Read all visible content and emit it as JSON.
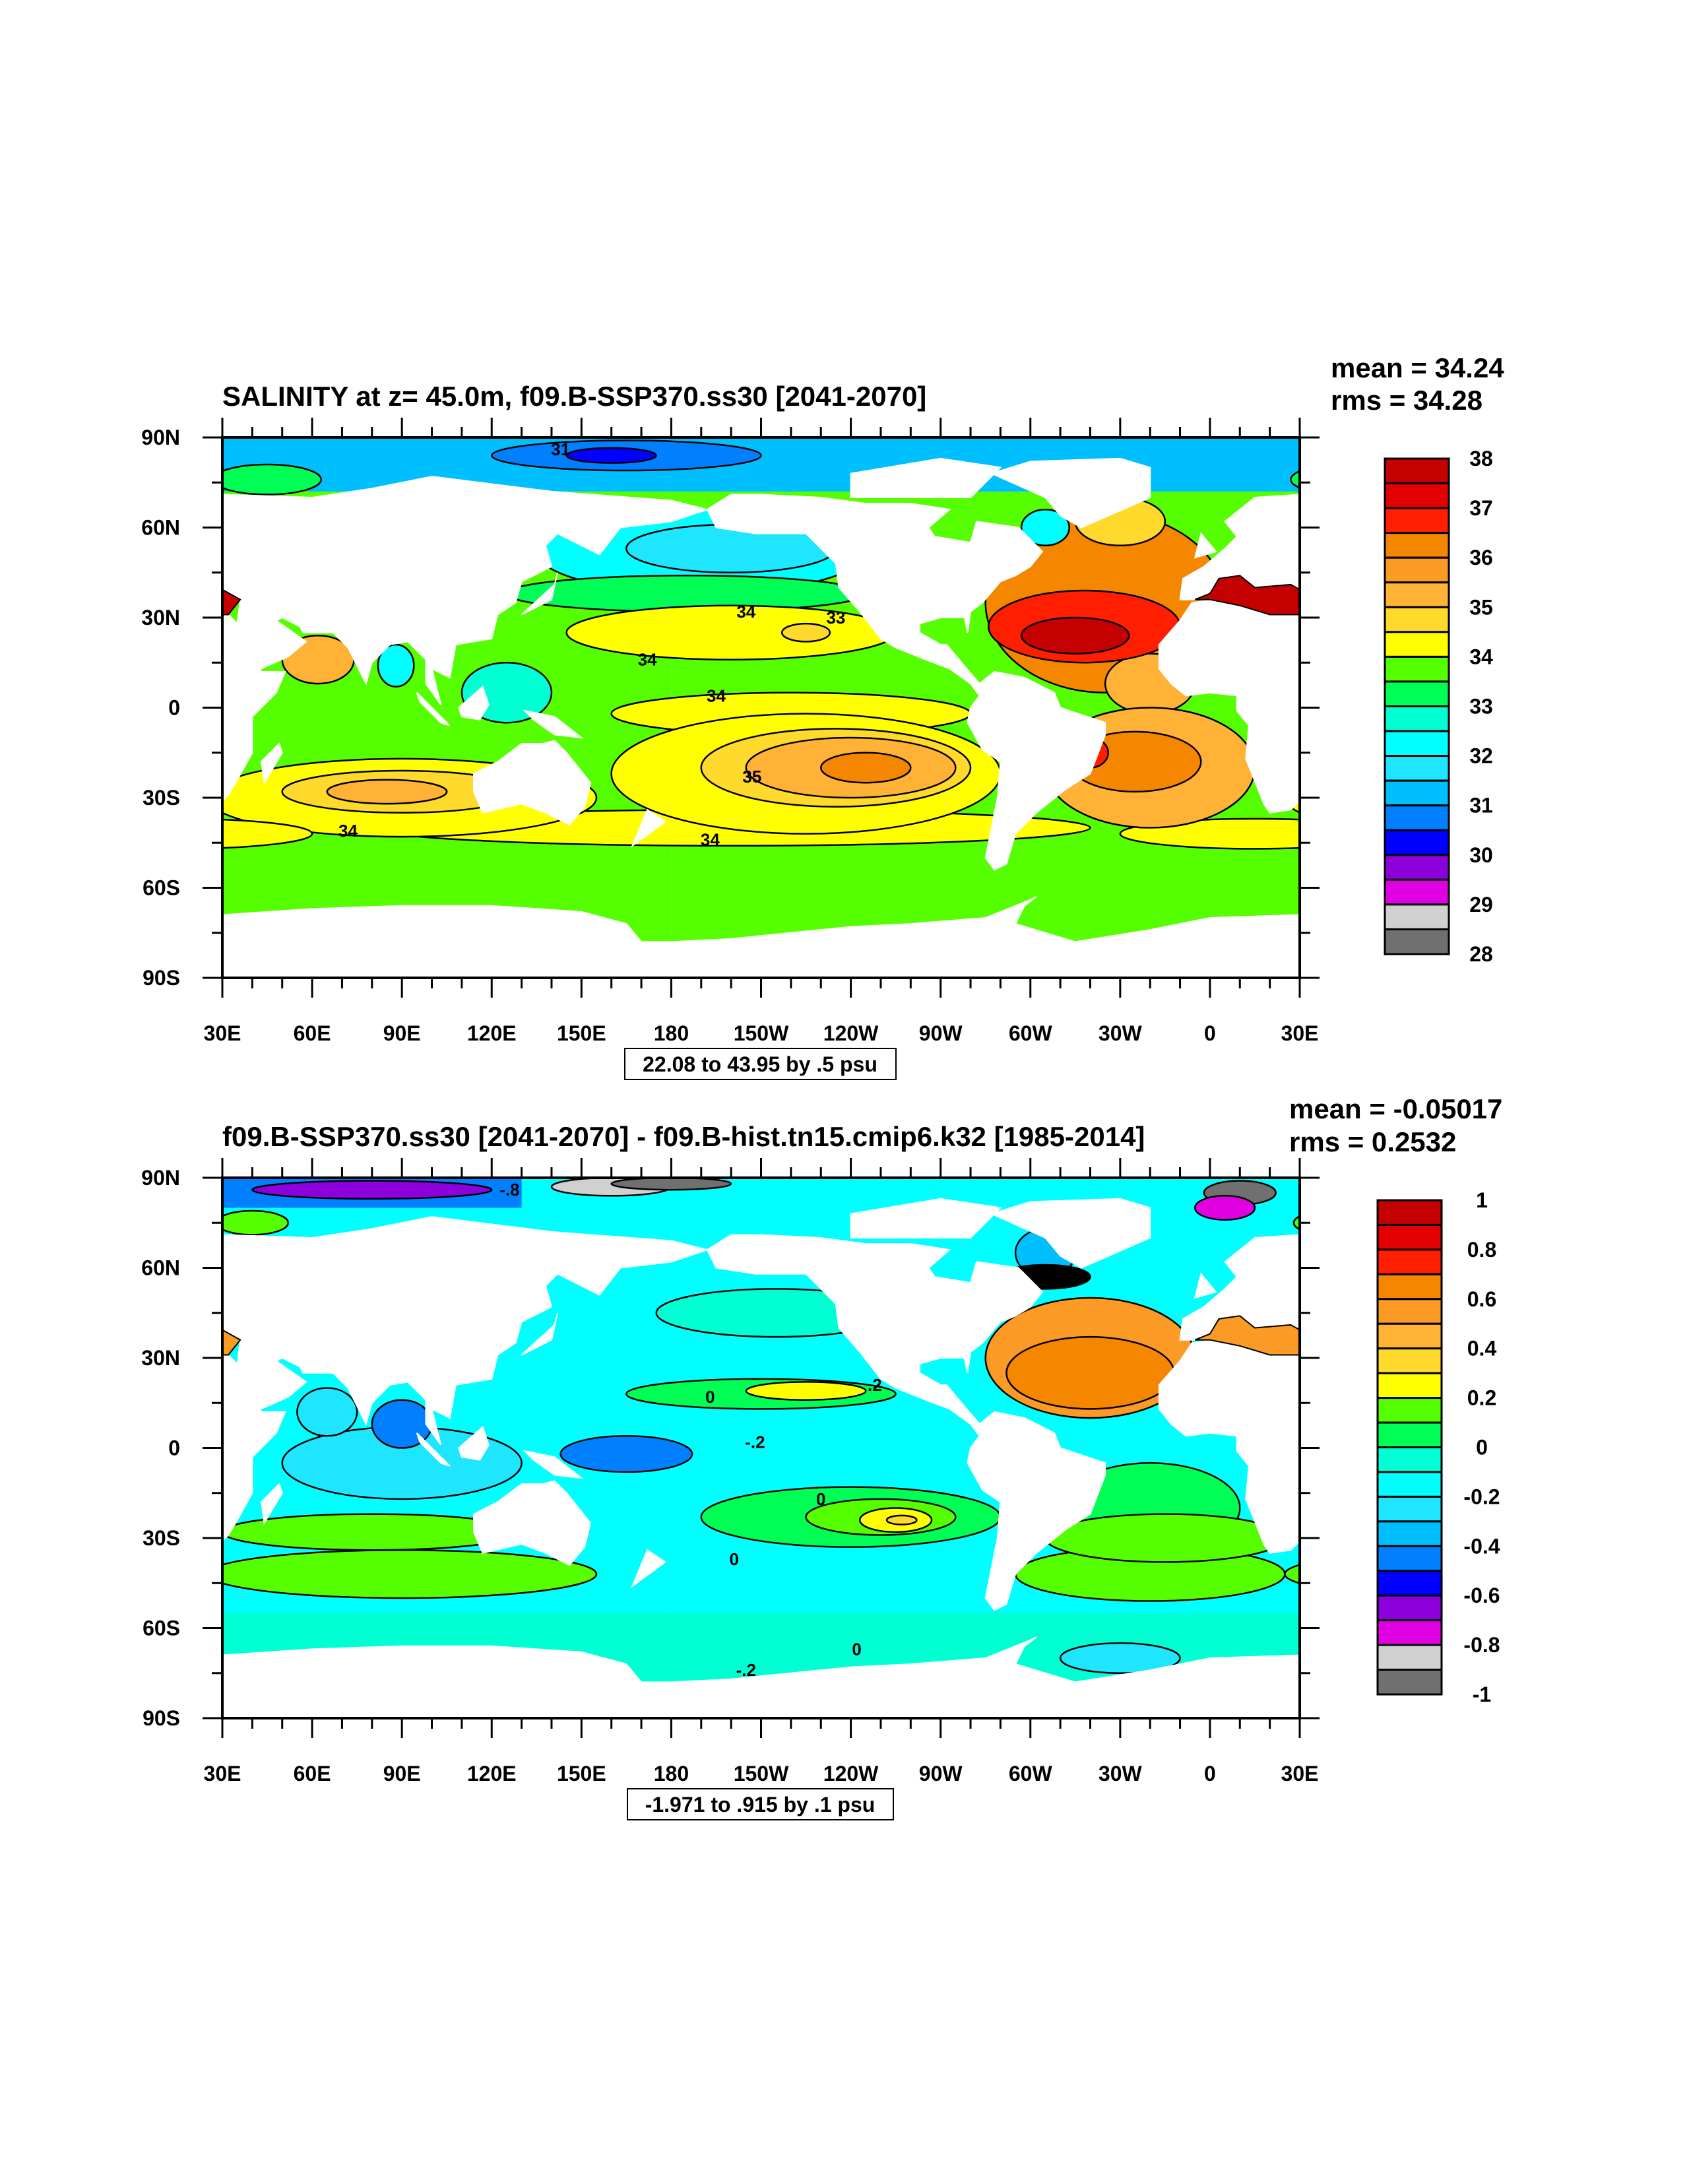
{
  "chart_data": [
    {
      "type": "heatmap",
      "title": "SALINITY at z=  45.0m, f09.B-SSP370.ss30 [2041-2070]",
      "stats": {
        "mean": "mean = 34.24",
        "rms": "rms = 34.28"
      },
      "info": "22.08 to 43.95 by .5 psu",
      "xticks": [
        "30E",
        "60E",
        "90E",
        "120E",
        "150E",
        "180",
        "150W",
        "120W",
        "90W",
        "60W",
        "30W",
        "0",
        "30E"
      ],
      "yticks": [
        "90N",
        "60N",
        "30N",
        "0",
        "30S",
        "60S",
        "90S"
      ],
      "colorbar": {
        "labels": [
          "38",
          "37",
          "36",
          "35",
          "34",
          "33",
          "32",
          "31",
          "30",
          "29",
          "28"
        ],
        "range": [
          28,
          38
        ],
        "interval": 0.5,
        "colors": [
          "#c40000",
          "#e30000",
          "#ff1e00",
          "#f58600",
          "#fb9a24",
          "#ffb236",
          "#ffd92b",
          "#ffff00",
          "#55ff00",
          "#00ff55",
          "#00ffd3",
          "#00ffff",
          "#1ee6ff",
          "#00bfff",
          "#0080ff",
          "#0000ff",
          "#8c00dc",
          "#e100e1",
          "#d0d0d0",
          "#707070"
        ]
      },
      "contour_labels": [
        "31",
        "34",
        "33",
        "34",
        "34",
        "35",
        "34",
        "34"
      ]
    },
    {
      "type": "heatmap",
      "title": "f09.B-SSP370.ss30 [2041-2070] - f09.B-hist.tn15.cmip6.k32 [1985-2014]",
      "stats": {
        "mean": "mean = -0.05017",
        "rms": "rms = 0.2532"
      },
      "info": "-1.971 to .915 by .1 psu",
      "xticks": [
        "30E",
        "60E",
        "90E",
        "120E",
        "150E",
        "180",
        "150W",
        "120W",
        "90W",
        "60W",
        "30W",
        "0",
        "30E"
      ],
      "yticks": [
        "90N",
        "60N",
        "30N",
        "0",
        "30S",
        "60S",
        "90S"
      ],
      "colorbar": {
        "labels": [
          "1",
          "0.8",
          "0.6",
          "0.4",
          "0.2",
          "0",
          "-0.2",
          "-0.4",
          "-0.6",
          "-0.8",
          "-1"
        ],
        "range": [
          -1,
          1
        ],
        "interval": 0.1,
        "colors": [
          "#c40000",
          "#e30000",
          "#ff1e00",
          "#f58600",
          "#fb9a24",
          "#ffb236",
          "#ffd92b",
          "#ffff00",
          "#55ff00",
          "#00ff55",
          "#00ffd3",
          "#00ffff",
          "#1ee6ff",
          "#00bfff",
          "#0080ff",
          "#0000ff",
          "#8c00dc",
          "#e100e1",
          "#d0d0d0",
          "#707070"
        ]
      },
      "contour_labels": [
        "-.8",
        "0",
        ".2",
        "-.2",
        "0",
        "0",
        "0",
        "-.2"
      ]
    }
  ]
}
